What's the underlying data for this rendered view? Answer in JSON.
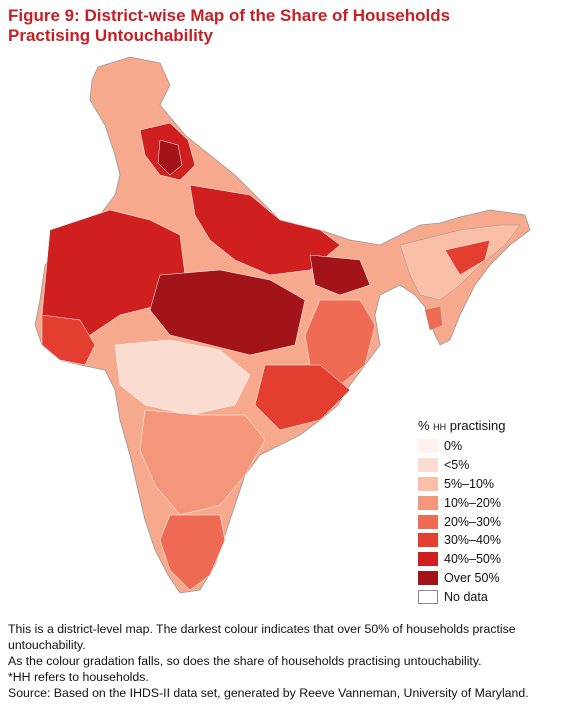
{
  "title": "Figure 9: District-wise Map of the Share of Households Practising Untouchability",
  "legend": {
    "title_prefix": "% ",
    "title_sub": "HH",
    "title_suffix": " practising",
    "items": [
      {
        "label": "0%",
        "color": "#fdf2ee"
      },
      {
        "label": "<5%",
        "color": "#fbdcd0"
      },
      {
        "label": "5%–10%",
        "color": "#f8bfa6"
      },
      {
        "label": "10%–20%",
        "color": "#f4967a"
      },
      {
        "label": "20%–30%",
        "color": "#ee6a52"
      },
      {
        "label": "30%–40%",
        "color": "#e43e31"
      },
      {
        "label": "40%–50%",
        "color": "#d01f1f"
      },
      {
        "label": "Over 50%",
        "color": "#a31418"
      },
      {
        "label": "No data",
        "color": "#ffffff"
      }
    ]
  },
  "notes": [
    "This is a district-level map. The darkest colour indicates that over 50% of households practise untouchability.",
    "As the colour gradation falls, so does the share of households practising untouchability.",
    "*HH refers to households.",
    "Source: Based on the IHDS-II data set, generated by Reeve Vanneman, University of Maryland."
  ]
}
